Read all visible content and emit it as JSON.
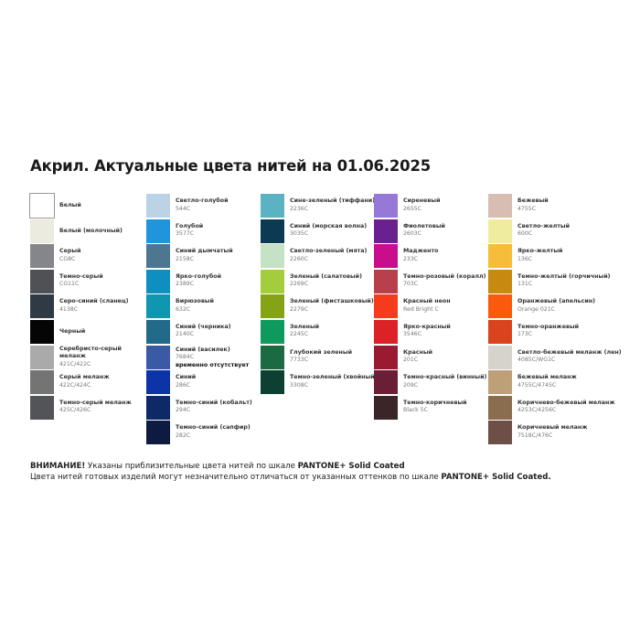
{
  "title": "Акрил. Актуальные цвета нитей на 01.06.2025",
  "columns": [
    [
      {
        "name": "Белый",
        "code": "",
        "color": "#ffffff"
      },
      {
        "name": "Белый (молочный)",
        "code": "",
        "color": "#ecebe0"
      },
      {
        "name": "Серый",
        "code": "CG8C",
        "color": "#85868a"
      },
      {
        "name": "Темно-серый",
        "code": "CG11C",
        "color": "#505155"
      },
      {
        "name": "Серо-синий (сланец)",
        "code": "4138C",
        "color": "#2f3a45"
      },
      {
        "name": "Черный",
        "code": "",
        "color": "#050505"
      },
      {
        "name": "Серебристо-серый меланж",
        "code": "421C/422C",
        "color": "#aaaaaa"
      },
      {
        "name": "Серый меланж",
        "code": "422C/424C",
        "color": "#747474"
      },
      {
        "name": "Темно-серый меланж",
        "code": "425C/426C",
        "color": "#525457"
      }
    ],
    [
      {
        "name": "Светло-голубой",
        "code": "544C",
        "color": "#bcd3e6"
      },
      {
        "name": "Голубой",
        "code": "3577C",
        "color": "#1f95dc"
      },
      {
        "name": "Синий дымчатый",
        "code": "2158C",
        "color": "#4d7690"
      },
      {
        "name": "Ярко-голубой",
        "code": "2389C",
        "color": "#0f8ec0"
      },
      {
        "name": "Бирюзовый",
        "code": "632C",
        "color": "#0e97ae"
      },
      {
        "name": "Синий (черника)",
        "code": "2140C",
        "color": "#226a8a"
      },
      {
        "name": "Синий (василек)",
        "code": "7684C",
        "note": "временно отсутствует",
        "color": "#3a5aa5"
      },
      {
        "name": "Синий",
        "code": "286C",
        "color": "#0c33a8"
      },
      {
        "name": "Темно-синий (кобальт)",
        "code": "294C",
        "color": "#0d2a66"
      },
      {
        "name": "Темно-синий (сапфир)",
        "code": "282C",
        "color": "#0f1a40"
      }
    ],
    [
      {
        "name": "Сине-зеленый (тиффани)",
        "code": "2236C",
        "color": "#5ab2c2"
      },
      {
        "name": "Синий (морская волна)",
        "code": "3035C",
        "color": "#0c3a52"
      },
      {
        "name": "Светло-зеленый (мята)",
        "code": "2260C",
        "color": "#c4e2c6"
      },
      {
        "name": "Зеленый (салатовый)",
        "code": "2269C",
        "color": "#a4cd3e"
      },
      {
        "name": "Зеленый (фисташковый)",
        "code": "2279C",
        "color": "#85a315"
      },
      {
        "name": "Зеленый",
        "code": "2245C",
        "color": "#0d9a5c"
      },
      {
        "name": "Глубокий зеленый",
        "code": "7733C",
        "color": "#1a6a42"
      },
      {
        "name": "Темно-зеленый (хвойный)",
        "code": "3308C",
        "color": "#0d3f32"
      }
    ],
    [
      {
        "name": "Сиреневый",
        "code": "2655C",
        "color": "#9878d6"
      },
      {
        "name": "Фиолетовый",
        "code": "2603C",
        "color": "#6a2090"
      },
      {
        "name": "Мадженто",
        "code": "233C",
        "color": "#c80e8c"
      },
      {
        "name": "Темно-розовый (коралл)",
        "code": "703C",
        "color": "#b8404c"
      },
      {
        "name": "Красный неон",
        "code": "Red Bright C",
        "color": "#f53a1e"
      },
      {
        "name": "Ярко-красный",
        "code": "3546C",
        "color": "#dc2226"
      },
      {
        "name": "Красный",
        "code": "201C",
        "color": "#9a1a32"
      },
      {
        "name": "Темно-красный (винный)",
        "code": "209C",
        "color": "#6a1f36"
      },
      {
        "name": "Темно-коричневый",
        "code": "Black 5C",
        "color": "#3a2528"
      }
    ],
    [
      {
        "name": "Бежевый",
        "code": "4755C",
        "color": "#d8beb2"
      },
      {
        "name": "Светло-желтый",
        "code": "600C",
        "color": "#efec9e"
      },
      {
        "name": "Ярко-желтый",
        "code": "136C",
        "color": "#f6bd3a"
      },
      {
        "name": "Темно-желтый (горчичный)",
        "code": "131C",
        "color": "#c78a10"
      },
      {
        "name": "Оранжевый (апельсин)",
        "code": "Orange 021C",
        "color": "#fb5a0e"
      },
      {
        "name": "Темно-оранжевый",
        "code": "173C",
        "color": "#d9441e"
      },
      {
        "name": "Светло-бежевый меланж (лен)",
        "code": "4085C/WG1C",
        "color": "#d6d2cc"
      },
      {
        "name": "Бежевый меланж",
        "code": "4755C/4745C",
        "color": "#bda078"
      },
      {
        "name": "Коричнево-бежевый меланж",
        "code": "4253C/4256C",
        "color": "#8a6d4e"
      },
      {
        "name": "Коричневый меланж",
        "code": "7518C/476C",
        "color": "#6e4f48"
      }
    ]
  ],
  "notes": {
    "warn": "ВНИМАНИЕ!",
    "line1": " Указаны приблизительные цвета нитей по шкале ",
    "pantone": "PANTONE+ Solid Coated",
    "dot": ".",
    "line2": "Цвета нитей готовых изделий могут незначительно отличаться от указанных оттенков по шкале "
  }
}
